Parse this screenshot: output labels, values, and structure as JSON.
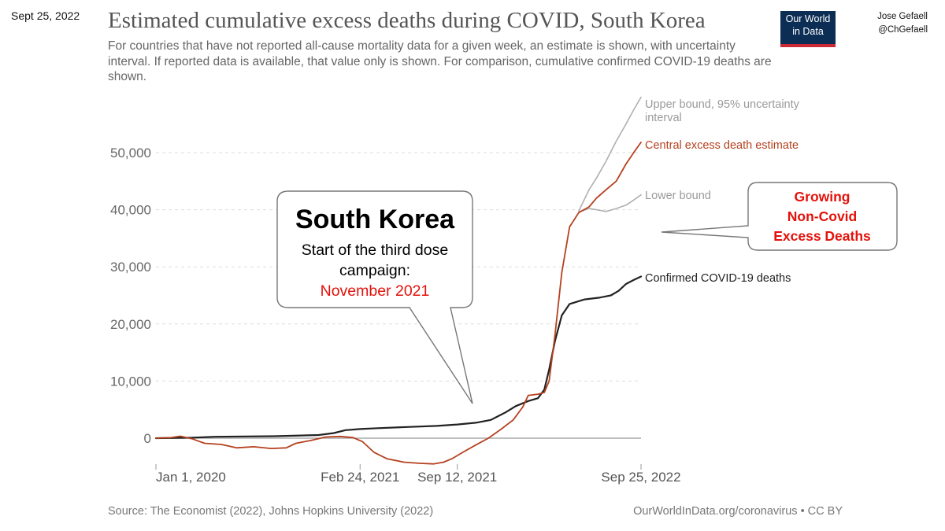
{
  "header": {
    "date": "Sept 25, 2022",
    "author_name": "Jose Gefaell",
    "author_handle": "@ChGefaell",
    "logo_line1": "Our World",
    "logo_line2": "in Data"
  },
  "footer": {
    "source": "Source: The Economist (2022), Johns Hopkins University (2022)",
    "license": "OurWorldInData.org/coronavirus • CC BY"
  },
  "annotations": {
    "callout_title": "South Korea",
    "callout_line1": "Start of the third dose",
    "callout_line2": "campaign:",
    "callout_line3": "November 2021",
    "box_line1": "Growing",
    "box_line2": "Non-Covid",
    "box_line3": "Excess Deaths"
  },
  "colors": {
    "excess": "#b5411f",
    "upper": "#b0b0b0",
    "lower": "#b0b0b0",
    "confirmed": "#222222",
    "callout_red": "#e3120b",
    "box_red": "#e3120b"
  },
  "chart_data": {
    "type": "line",
    "title": "Estimated cumulative excess deaths during COVID, South Korea",
    "subtitle": "For countries that have not reported all-cause mortality data for a given week, an estimate is shown, with uncertainty interval. If reported data is available, that value only is shown. For comparison, cumulative confirmed COVID-19 deaths are shown.",
    "x_start": "2020-01-01",
    "x_end": "2022-09-25",
    "x_ticks": [
      {
        "date": "2020-01-01",
        "label": "Jan 1, 2020"
      },
      {
        "date": "2021-02-24",
        "label": "Feb 24, 2021"
      },
      {
        "date": "2021-09-12",
        "label": "Sep 12, 2021"
      },
      {
        "date": "2022-09-25",
        "label": "Sep 25, 2022"
      }
    ],
    "ylim": [
      -5000,
      60000
    ],
    "y_ticks": [
      0,
      10000,
      20000,
      30000,
      40000,
      50000
    ],
    "y_tick_labels": [
      "0",
      "10,000",
      "20,000",
      "30,000",
      "40,000",
      "50,000"
    ],
    "grid": true,
    "series": [
      {
        "name": "Central excess death estimate",
        "label": "Central excess death estimate",
        "color_key": "excess",
        "points": [
          [
            "2020-01-01",
            0
          ],
          [
            "2020-02-01",
            100
          ],
          [
            "2020-02-20",
            350
          ],
          [
            "2020-03-15",
            -100
          ],
          [
            "2020-04-10",
            -900
          ],
          [
            "2020-05-15",
            -1100
          ],
          [
            "2020-06-15",
            -1700
          ],
          [
            "2020-07-20",
            -1500
          ],
          [
            "2020-08-25",
            -1800
          ],
          [
            "2020-09-25",
            -1700
          ],
          [
            "2020-10-15",
            -900
          ],
          [
            "2020-11-15",
            -400
          ],
          [
            "2020-12-15",
            200
          ],
          [
            "2021-01-15",
            300
          ],
          [
            "2021-02-10",
            100
          ],
          [
            "2021-03-01",
            -600
          ],
          [
            "2021-03-25",
            -2500
          ],
          [
            "2021-04-20",
            -3600
          ],
          [
            "2021-05-25",
            -4200
          ],
          [
            "2021-06-25",
            -4400
          ],
          [
            "2021-07-25",
            -4500
          ],
          [
            "2021-08-15",
            -4200
          ],
          [
            "2021-09-01",
            -3600
          ],
          [
            "2021-09-25",
            -2400
          ],
          [
            "2021-10-20",
            -1200
          ],
          [
            "2021-11-15",
            0
          ],
          [
            "2021-12-10",
            1500
          ],
          [
            "2022-01-05",
            3200
          ],
          [
            "2022-01-25",
            5500
          ],
          [
            "2022-02-05",
            7500
          ],
          [
            "2022-02-25",
            7700
          ],
          [
            "2022-03-10",
            8000
          ],
          [
            "2022-03-20",
            10000
          ],
          [
            "2022-04-01",
            18000
          ],
          [
            "2022-04-15",
            29000
          ],
          [
            "2022-05-01",
            37000
          ],
          [
            "2022-05-20",
            39500
          ],
          [
            "2022-06-10",
            40500
          ],
          [
            "2022-06-25",
            42000
          ],
          [
            "2022-07-15",
            43500
          ],
          [
            "2022-08-05",
            45000
          ],
          [
            "2022-08-25",
            48000
          ],
          [
            "2022-09-10",
            50000
          ],
          [
            "2022-09-25",
            51800
          ]
        ]
      },
      {
        "name": "Upper bound, 95% uncertainty interval",
        "label_line1": "Upper bound, 95% uncertainty",
        "label_line2": "interval",
        "color_key": "upper",
        "points": [
          [
            "2022-05-20",
            39800
          ],
          [
            "2022-06-10",
            43500
          ],
          [
            "2022-06-25",
            45500
          ],
          [
            "2022-07-15",
            48500
          ],
          [
            "2022-08-05",
            52000
          ],
          [
            "2022-08-25",
            55000
          ],
          [
            "2022-09-10",
            57500
          ],
          [
            "2022-09-25",
            59700
          ]
        ]
      },
      {
        "name": "Lower bound",
        "label": "Lower bound",
        "color_key": "lower",
        "points": [
          [
            "2022-05-20",
            39600
          ],
          [
            "2022-06-10",
            40200
          ],
          [
            "2022-06-25",
            40000
          ],
          [
            "2022-07-15",
            39700
          ],
          [
            "2022-08-05",
            40200
          ],
          [
            "2022-08-25",
            40800
          ],
          [
            "2022-09-10",
            41700
          ],
          [
            "2022-09-25",
            42600
          ]
        ]
      },
      {
        "name": "Confirmed COVID-19 deaths",
        "label": "Confirmed COVID-19 deaths",
        "color_key": "confirmed",
        "points": [
          [
            "2020-01-01",
            0
          ],
          [
            "2020-03-15",
            80
          ],
          [
            "2020-05-01",
            250
          ],
          [
            "2020-09-01",
            350
          ],
          [
            "2020-12-01",
            550
          ],
          [
            "2021-01-01",
            900
          ],
          [
            "2021-01-25",
            1400
          ],
          [
            "2021-02-24",
            1600
          ],
          [
            "2021-04-01",
            1750
          ],
          [
            "2021-06-01",
            1950
          ],
          [
            "2021-08-01",
            2150
          ],
          [
            "2021-09-12",
            2400
          ],
          [
            "2021-10-20",
            2700
          ],
          [
            "2021-11-20",
            3200
          ],
          [
            "2021-12-20",
            4500
          ],
          [
            "2022-01-10",
            5600
          ],
          [
            "2022-02-05",
            6500
          ],
          [
            "2022-02-25",
            7000
          ],
          [
            "2022-03-10",
            8500
          ],
          [
            "2022-03-20",
            12000
          ],
          [
            "2022-04-01",
            17000
          ],
          [
            "2022-04-15",
            21500
          ],
          [
            "2022-05-01",
            23500
          ],
          [
            "2022-06-01",
            24300
          ],
          [
            "2022-07-01",
            24600
          ],
          [
            "2022-07-25",
            25000
          ],
          [
            "2022-08-10",
            25800
          ],
          [
            "2022-08-25",
            27000
          ],
          [
            "2022-09-10",
            27700
          ],
          [
            "2022-09-25",
            28300
          ]
        ]
      }
    ]
  }
}
